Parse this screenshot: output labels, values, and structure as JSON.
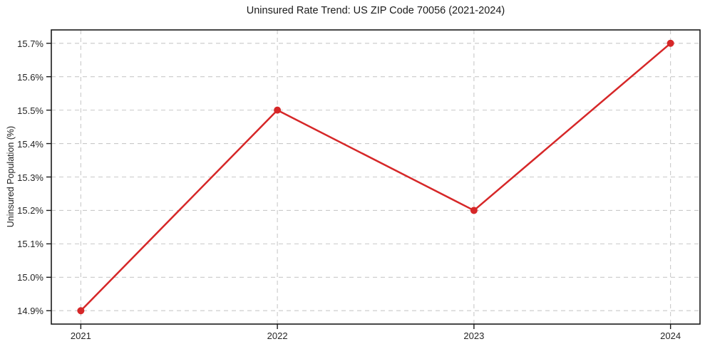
{
  "page": {
    "background": "#ffffff"
  },
  "chart_data": {
    "type": "line",
    "title": "Uninsured Rate Trend: US ZIP Code 70056 (2021-2024)",
    "xlabel": "",
    "ylabel": "Uninsured Population (%)",
    "x": [
      2021,
      2022,
      2023,
      2024
    ],
    "x_tick_labels": [
      "2021",
      "2022",
      "2023",
      "2024"
    ],
    "series": [
      {
        "name": "Uninsured rate",
        "values": [
          14.9,
          15.5,
          15.2,
          15.7
        ],
        "color": "#d62728",
        "marker": "circle",
        "line_width": 2.5,
        "marker_radius": 5
      }
    ],
    "y_ticks": {
      "values": [
        14.9,
        15.0,
        15.1,
        15.2,
        15.3,
        15.4,
        15.5,
        15.6,
        15.7
      ],
      "labels": [
        "14.9%",
        "15.0%",
        "15.1%",
        "15.2%",
        "15.3%",
        "15.4%",
        "15.5%",
        "15.6%",
        "15.7%"
      ]
    },
    "ylim": [
      14.86,
      15.74
    ],
    "xlim": [
      2020.85,
      2024.15
    ],
    "grid": {
      "show": true,
      "style": "dashed",
      "color": "#c9c9c9",
      "axes": "both"
    },
    "legend": "none",
    "frame_color": "#1a1a1a",
    "tick_color": "#1a1a1a",
    "text_color": "#262626"
  }
}
